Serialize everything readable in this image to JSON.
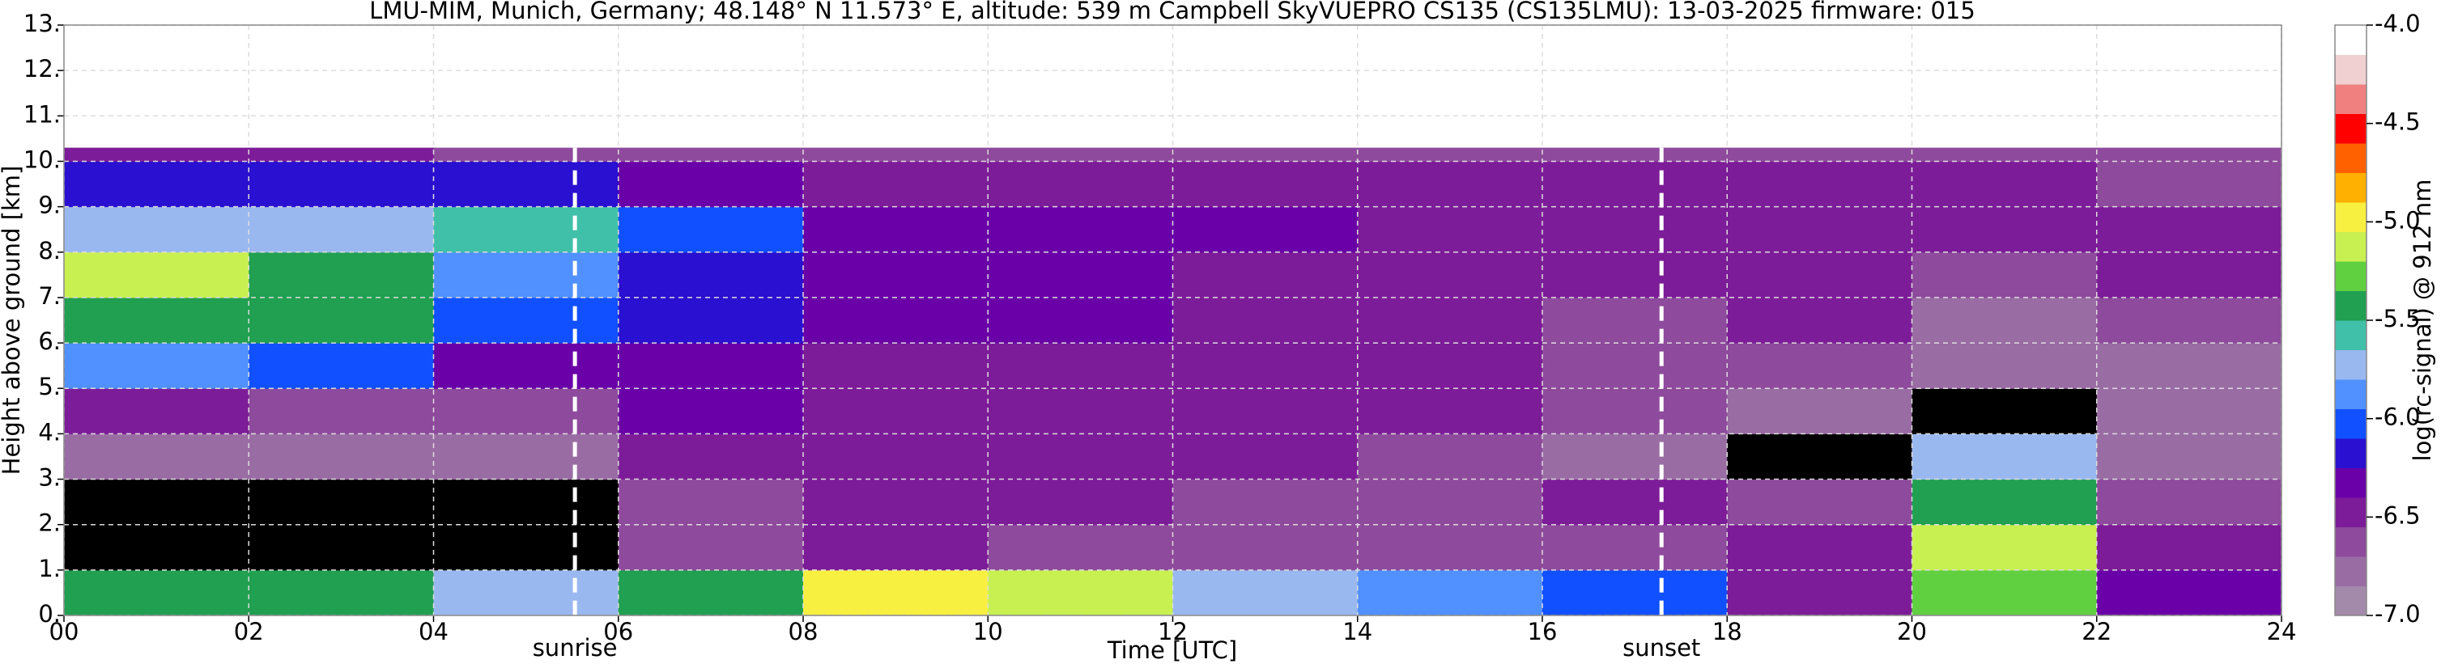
{
  "chart_data": {
    "type": "heatmap",
    "title": "LMU-MIM, Munich, Germany; 48.148° N 11.573° E, altitude: 539 m    Campbell SkyVUEPRO CS135 (CS135LMU): 13-03-2025    firmware: 015",
    "x_label": "Time [UTC]",
    "y_label": "Height above ground [km]",
    "colorbar_label": "log(rc-signal) @ 912 nm",
    "xlim": [
      0,
      24
    ],
    "ylim": [
      0,
      13
    ],
    "clim": [
      -7,
      -4
    ],
    "xticks": [
      {
        "value": 0,
        "label": "00"
      },
      {
        "value": 2,
        "label": "02"
      },
      {
        "value": 4,
        "label": "04"
      },
      {
        "value": 6,
        "label": "06"
      },
      {
        "value": 8,
        "label": "08"
      },
      10,
      12,
      14,
      16,
      18,
      20,
      22,
      24
    ],
    "yticks": [
      {
        "value": 0,
        "label": "0."
      },
      {
        "value": 1,
        "label": "1."
      },
      {
        "value": 2,
        "label": "2."
      },
      {
        "value": 3,
        "label": "3."
      },
      {
        "value": 4,
        "label": "4."
      },
      {
        "value": 5,
        "label": "5."
      },
      {
        "value": 6,
        "label": "6."
      },
      {
        "value": 7,
        "label": "7."
      },
      {
        "value": 8,
        "label": "8."
      },
      {
        "value": 9,
        "label": "9."
      },
      {
        "value": 10,
        "label": "10."
      },
      {
        "value": 11,
        "label": "11."
      },
      {
        "value": 12,
        "label": "12."
      },
      {
        "value": 13,
        "label": "13."
      }
    ],
    "cticks": [
      {
        "value": -7,
        "label": "-7.0"
      },
      -6.5,
      {
        "value": -6,
        "label": "-6.0"
      },
      -5.5,
      {
        "value": -5,
        "label": "-5.0"
      },
      -4.5,
      {
        "value": -4,
        "label": "-4.0"
      }
    ],
    "colormap": [
      "#a48aaa",
      "#9a6ca4",
      "#8e4a9c",
      "#7d1c98",
      "#6a00a8",
      "#2a10d0",
      "#1050ff",
      "#5090ff",
      "#9ab8f0",
      "#40c0a8",
      "#20a050",
      "#60d040",
      "#c8f050",
      "#f8f040",
      "#ffb000",
      "#ff6000",
      "#ff0000",
      "#f08080",
      "#f0d0d0",
      "#ffffff"
    ],
    "no_signal_color": "#000000",
    "grid": true,
    "x_edges": [
      0,
      2,
      4,
      6,
      8,
      10,
      12,
      14,
      16,
      18,
      20,
      22,
      24
    ],
    "y_edges": [
      0,
      1,
      2,
      3,
      4,
      5,
      6,
      7,
      8,
      9,
      10,
      10.3
    ],
    "z": [
      [
        -5.5,
        -5.5,
        -5.7,
        -5.5,
        -5.0,
        -5.2,
        -5.8,
        -5.9,
        -6.1,
        -6.5,
        -5.3,
        -6.3
      ],
      [
        null,
        null,
        null,
        -6.6,
        -6.5,
        -6.6,
        -6.6,
        -6.6,
        -6.6,
        -6.5,
        -5.2,
        -6.5
      ],
      [
        null,
        null,
        null,
        -6.6,
        -6.5,
        -6.5,
        -6.6,
        -6.6,
        -6.5,
        -6.6,
        -5.5,
        -6.6
      ],
      [
        -6.8,
        -6.8,
        -6.8,
        -6.5,
        -6.5,
        -6.5,
        -6.5,
        -6.6,
        -6.7,
        null,
        -5.8,
        -6.8
      ],
      [
        -6.5,
        -6.6,
        -6.6,
        -6.3,
        -6.4,
        -6.4,
        -6.5,
        -6.5,
        -6.6,
        -6.7,
        null,
        -6.7
      ],
      [
        -5.9,
        -6.1,
        -6.3,
        -6.3,
        -6.4,
        -6.4,
        -6.4,
        -6.5,
        -6.6,
        -6.6,
        -6.8,
        -6.7
      ],
      [
        -5.4,
        -5.5,
        -6.0,
        -6.2,
        -6.3,
        -6.3,
        -6.4,
        -6.5,
        -6.6,
        -6.5,
        -6.7,
        -6.6
      ],
      [
        -5.2,
        -5.4,
        -5.9,
        -6.2,
        -6.3,
        -6.3,
        -6.4,
        -6.5,
        -6.5,
        -6.5,
        -6.6,
        -6.5
      ],
      [
        -5.8,
        -5.8,
        -5.6,
        -6.0,
        -6.3,
        -6.3,
        -6.3,
        -6.4,
        -6.5,
        -6.4,
        -6.5,
        -6.5
      ],
      [
        -6.2,
        -6.2,
        -6.2,
        -6.3,
        -6.4,
        -6.4,
        -6.4,
        -6.4,
        -6.5,
        -6.5,
        -6.5,
        -6.6
      ],
      [
        -6.5,
        -6.5,
        -6.6,
        -6.6,
        -6.6,
        -6.6,
        -6.6,
        -6.6,
        -6.6,
        -6.6,
        -6.6,
        -6.6
      ]
    ],
    "annotations": [
      {
        "x": 5.53,
        "text": "sunrise"
      },
      {
        "x": 17.29,
        "text": "sunset"
      }
    ]
  }
}
